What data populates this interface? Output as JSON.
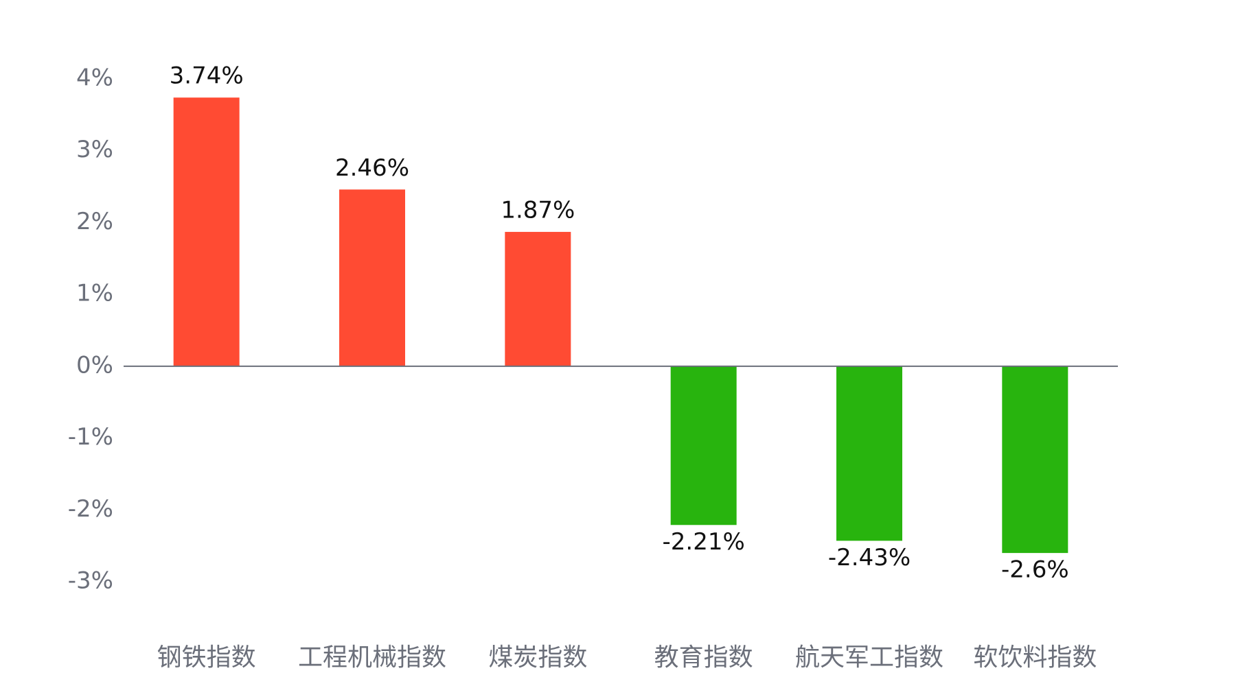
{
  "chart_data": {
    "type": "bar",
    "categories": [
      "钢铁指数",
      "工程机械指数",
      "煤炭指数",
      "教育指数",
      "航天军工指数",
      "软饮料指数"
    ],
    "values": [
      3.74,
      2.46,
      1.87,
      -2.21,
      -2.43,
      -2.6
    ],
    "value_labels": [
      "3.74%",
      "2.46%",
      "1.87%",
      "-2.21%",
      "-2.43%",
      "-2.6%"
    ],
    "positive_color": "#ff4b33",
    "negative_color": "#28b40e",
    "ylim": [
      -3,
      4
    ],
    "yticks": [
      {
        "value": 4,
        "label": "4%"
      },
      {
        "value": 3,
        "label": "3%"
      },
      {
        "value": 2,
        "label": "2%"
      },
      {
        "value": 1,
        "label": "1%"
      },
      {
        "value": 0,
        "label": "0%"
      },
      {
        "value": -1,
        "label": "-1%"
      },
      {
        "value": -2,
        "label": "-2%"
      },
      {
        "value": -3,
        "label": "-3%"
      }
    ],
    "grid": false
  }
}
